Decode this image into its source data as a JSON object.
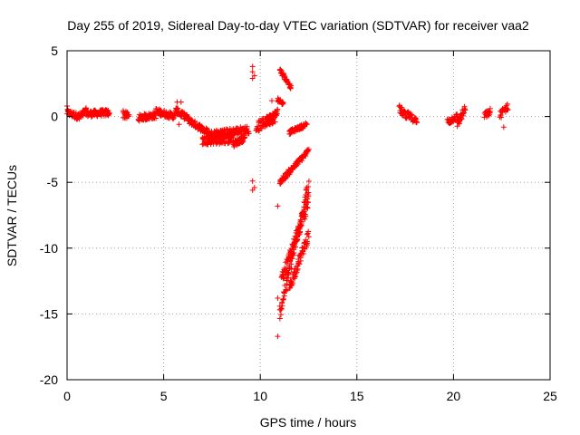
{
  "chart_data": {
    "type": "scatter",
    "title": "Day 255 of 2019, Sidereal Day-to-day VTEC variation (SDTVAR) for receiver vaa2",
    "xlabel": "GPS time / hours",
    "ylabel": "SDTVAR / TECUs",
    "xlim": [
      0,
      25
    ],
    "ylim": [
      -20,
      5
    ],
    "xticks": [
      0,
      5,
      10,
      15,
      20,
      25
    ],
    "yticks": [
      -20,
      -15,
      -10,
      -5,
      0,
      5
    ],
    "grid": true,
    "marker": "+",
    "colors": {
      "series": "#ff0000",
      "grid": "#a0a0a0",
      "axis": "#000000"
    },
    "segments": [
      {
        "x0": 0.0,
        "x1": 0.6,
        "y0": 0.3,
        "y1": 0.0,
        "spread": 0.5
      },
      {
        "x0": 0.6,
        "x1": 1.0,
        "y0": -0.1,
        "y1": 0.4,
        "spread": 0.6
      },
      {
        "x0": 1.0,
        "x1": 2.2,
        "y0": 0.2,
        "y1": 0.3,
        "spread": 0.5
      },
      {
        "x0": 2.9,
        "x1": 3.2,
        "y0": 0.2,
        "y1": 0.0,
        "spread": 0.6
      },
      {
        "x0": 3.7,
        "x1": 4.6,
        "y0": -0.1,
        "y1": 0.1,
        "spread": 0.5
      },
      {
        "x0": 4.6,
        "x1": 5.6,
        "y0": 0.4,
        "y1": 0.0,
        "spread": 0.5
      },
      {
        "x0": 5.6,
        "x1": 6.3,
        "y0": 0.5,
        "y1": -0.2,
        "spread": 0.5
      },
      {
        "x0": 6.3,
        "x1": 7.3,
        "y0": -0.3,
        "y1": -1.2,
        "spread": 0.5
      },
      {
        "x0": 7.0,
        "x1": 8.6,
        "y0": -1.8,
        "y1": -1.7,
        "spread": 0.7
      },
      {
        "x0": 7.3,
        "x1": 9.4,
        "y0": -1.4,
        "y1": -1.0,
        "spread": 0.6
      },
      {
        "x0": 8.6,
        "x1": 9.2,
        "y0": -2.1,
        "y1": -1.6,
        "spread": 0.5
      },
      {
        "x0": 9.8,
        "x1": 10.8,
        "y0": -0.8,
        "y1": 0.0,
        "spread": 0.8
      },
      {
        "x0": 10.3,
        "x1": 10.9,
        "y0": -0.3,
        "y1": 0.3,
        "spread": 0.6
      },
      {
        "x0": 10.9,
        "x1": 11.2,
        "y0": 1.3,
        "y1": 1.0,
        "spread": 0.3
      },
      {
        "x0": 11.0,
        "x1": 11.6,
        "y0": 3.6,
        "y1": 2.2,
        "spread": 0.3
      },
      {
        "x0": 11.5,
        "x1": 12.4,
        "y0": -1.2,
        "y1": -0.6,
        "spread": 0.3
      },
      {
        "x0": 11.0,
        "x1": 12.5,
        "y0": -5.0,
        "y1": -2.6,
        "spread": 0.4
      },
      {
        "x0": 11.0,
        "x1": 12.5,
        "y0": -15.0,
        "y1": -5.2,
        "spread": 1.0
      },
      {
        "x0": 11.1,
        "x1": 12.5,
        "y0": -12.5,
        "y1": -6.5,
        "spread": 1.0
      },
      {
        "x0": 11.5,
        "x1": 12.5,
        "y0": -13.0,
        "y1": -9.0,
        "spread": 0.8
      },
      {
        "x0": 17.2,
        "x1": 17.6,
        "y0": 0.6,
        "y1": -0.1,
        "spread": 0.6
      },
      {
        "x0": 17.6,
        "x1": 18.1,
        "y0": 0.2,
        "y1": -0.4,
        "spread": 0.5
      },
      {
        "x0": 19.7,
        "x1": 20.2,
        "y0": -0.4,
        "y1": 0.0,
        "spread": 0.5
      },
      {
        "x0": 20.2,
        "x1": 20.6,
        "y0": -0.5,
        "y1": 0.5,
        "spread": 0.7
      },
      {
        "x0": 21.6,
        "x1": 21.9,
        "y0": 0.1,
        "y1": 0.3,
        "spread": 0.5
      },
      {
        "x0": 22.4,
        "x1": 22.8,
        "y0": 0.1,
        "y1": 0.8,
        "spread": 0.6
      }
    ],
    "isolated_points": [
      [
        0.0,
        0.8
      ],
      [
        5.7,
        1.1
      ],
      [
        5.9,
        1.1
      ],
      [
        5.8,
        -0.6
      ],
      [
        9.6,
        3.8
      ],
      [
        9.6,
        3.4
      ],
      [
        9.7,
        3.1
      ],
      [
        9.6,
        2.9
      ],
      [
        9.6,
        -4.9
      ],
      [
        9.7,
        -5.4
      ],
      [
        9.6,
        -5.6
      ],
      [
        10.6,
        1.2
      ],
      [
        10.9,
        -6.8
      ],
      [
        10.9,
        -16.7
      ],
      [
        10.9,
        -13.8
      ],
      [
        22.6,
        -0.8
      ],
      [
        21.9,
        0.6
      ]
    ]
  }
}
